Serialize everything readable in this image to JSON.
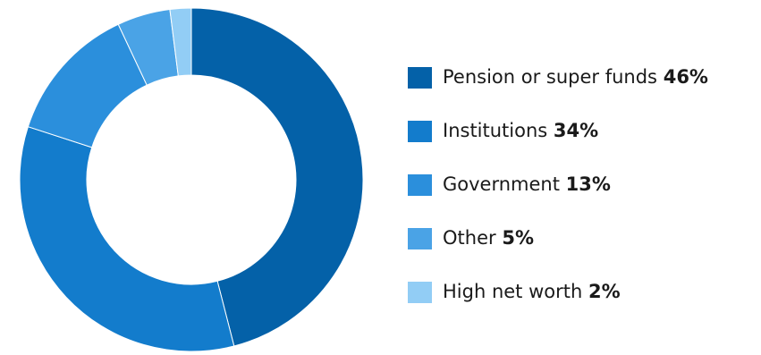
{
  "chart_data": {
    "type": "pie",
    "categories": [
      "Pension or super funds",
      "Institutions",
      "Government",
      "Other",
      "High net worth"
    ],
    "values": [
      46,
      34,
      13,
      5,
      2
    ],
    "value_labels": [
      "46%",
      "34%",
      "13%",
      "5%",
      "2%"
    ],
    "colors": [
      "#0461a8",
      "#137ccc",
      "#2b8fdc",
      "#4aa3e6",
      "#92cdf5"
    ],
    "donut": true,
    "start_angle": "12 o'clock",
    "direction": "clockwise",
    "legend_position": "right"
  }
}
